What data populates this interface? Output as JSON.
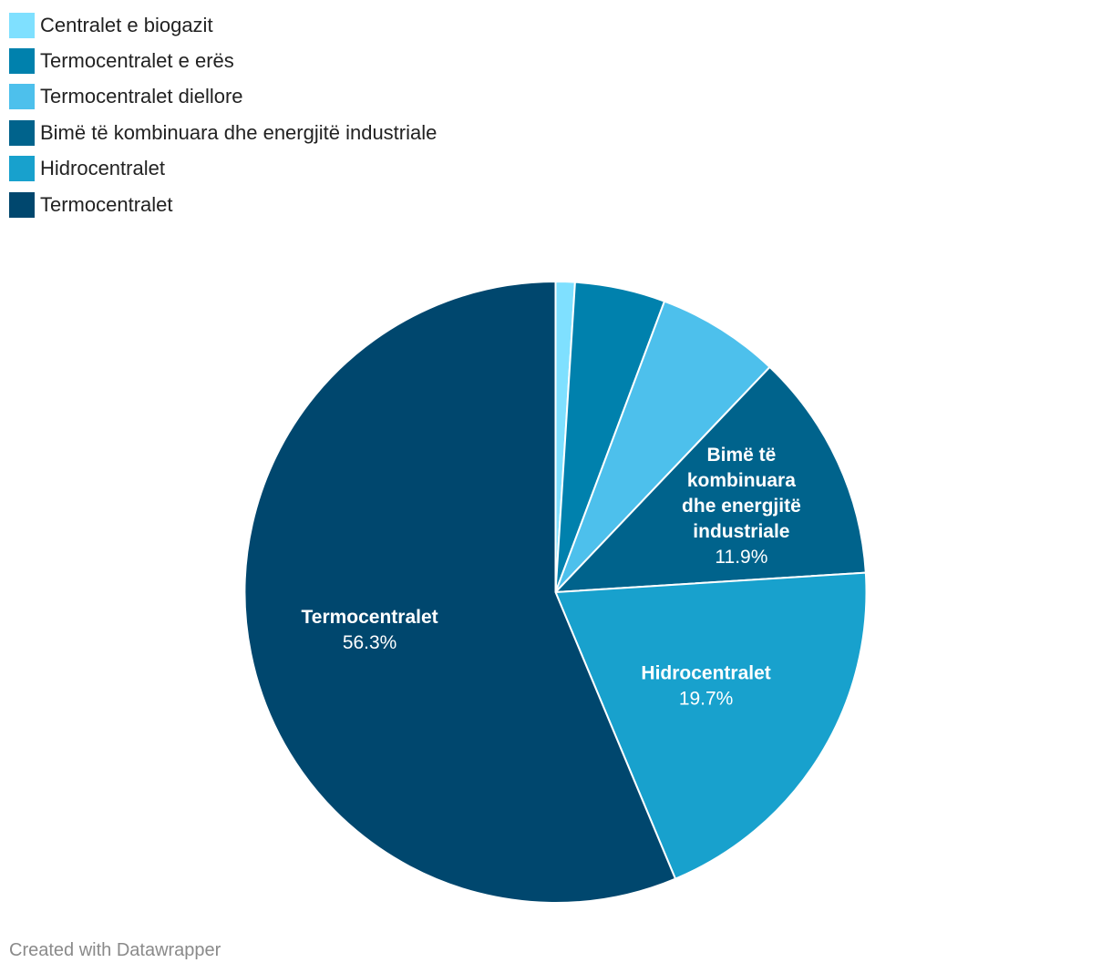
{
  "chart_data": {
    "type": "pie",
    "legend_position": "top-left",
    "slices": [
      {
        "name": "Centralet e biogazit",
        "value": 1.0,
        "color": "#7fe0ff",
        "show_label": false
      },
      {
        "name": "Termocentralet e erës",
        "value": 4.7,
        "color": "#0081ad",
        "show_label": false
      },
      {
        "name": "Termocentralet diellore",
        "value": 6.4,
        "color": "#4dc0ec",
        "show_label": false
      },
      {
        "name": "Bimë të kombinuara dhe energjitë industriale",
        "value": 11.9,
        "value_label": "11.9%",
        "label_lines": [
          "Bimë të",
          "kombinuara",
          "dhe energjitë",
          "industriale"
        ],
        "color": "#00638c",
        "show_label": true
      },
      {
        "name": "Hidrocentralet",
        "value": 19.7,
        "value_label": "19.7%",
        "label_lines": [
          "Hidrocentralet"
        ],
        "color": "#18a1cd",
        "show_label": true
      },
      {
        "name": "Termocentralet",
        "value": 56.3,
        "value_label": "56.3%",
        "label_lines": [
          "Termocentralet"
        ],
        "color": "#00476e",
        "show_label": true
      }
    ]
  },
  "footer": {
    "credit": "Created with Datawrapper"
  }
}
